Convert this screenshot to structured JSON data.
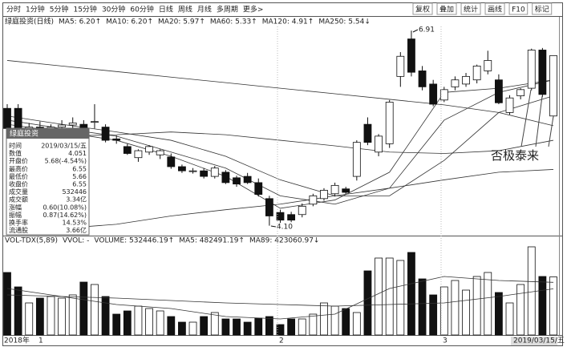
{
  "toolbar": {
    "left": [
      "分时",
      "1分钟",
      "5分钟",
      "15分钟",
      "30分钟",
      "60分钟",
      "日线",
      "周线",
      "月线",
      "多周期",
      "更多>"
    ],
    "right": [
      "复权",
      "叠加",
      "统计",
      "画线",
      "F10",
      "标记"
    ]
  },
  "chart_data": {
    "type": "candlestick",
    "title": "绿庭投资(日线)",
    "ylim": [
      3.98,
      6.97
    ],
    "candles": [
      {
        "open": 5.79,
        "high": 5.85,
        "low": 5.44,
        "close": 5.5
      },
      {
        "open": 5.79,
        "high": 5.85,
        "low": 5.48,
        "close": 5.5
      },
      {
        "open": 5.5,
        "high": 5.58,
        "low": 5.44,
        "close": 5.52
      },
      {
        "open": 5.52,
        "high": 5.6,
        "low": 5.46,
        "close": 5.48
      },
      {
        "open": 5.48,
        "high": 5.56,
        "low": 5.42,
        "close": 5.52
      },
      {
        "open": 5.52,
        "high": 5.62,
        "low": 5.46,
        "close": 5.55
      },
      {
        "open": 5.55,
        "high": 5.66,
        "low": 5.5,
        "close": 5.58
      },
      {
        "open": 5.56,
        "high": 5.62,
        "low": 5.44,
        "close": 5.48
      },
      {
        "open": 5.59,
        "high": 5.85,
        "low": 5.5,
        "close": 5.6
      },
      {
        "open": 5.52,
        "high": 5.56,
        "low": 5.3,
        "close": 5.33
      },
      {
        "open": 5.35,
        "high": 5.4,
        "low": 5.28,
        "close": 5.33
      },
      {
        "open": 5.24,
        "high": 5.28,
        "low": 5.12,
        "close": 5.14
      },
      {
        "open": 5.08,
        "high": 5.2,
        "low": 5.02,
        "close": 5.18
      },
      {
        "open": 5.16,
        "high": 5.26,
        "low": 5.12,
        "close": 5.24
      },
      {
        "open": 5.12,
        "high": 5.2,
        "low": 5.06,
        "close": 5.18
      },
      {
        "open": 5.09,
        "high": 5.14,
        "low": 4.92,
        "close": 4.95
      },
      {
        "open": 4.95,
        "high": 4.98,
        "low": 4.86,
        "close": 4.89
      },
      {
        "open": 4.89,
        "high": 4.93,
        "low": 4.85,
        "close": 4.89
      },
      {
        "open": 4.89,
        "high": 4.93,
        "low": 4.78,
        "close": 4.81
      },
      {
        "open": 4.81,
        "high": 4.96,
        "low": 4.78,
        "close": 4.93
      },
      {
        "open": 4.87,
        "high": 4.9,
        "low": 4.7,
        "close": 4.72
      },
      {
        "open": 4.79,
        "high": 4.82,
        "low": 4.66,
        "close": 4.7
      },
      {
        "open": 4.81,
        "high": 4.86,
        "low": 4.7,
        "close": 4.72
      },
      {
        "open": 4.72,
        "high": 4.78,
        "low": 4.52,
        "close": 4.55
      },
      {
        "open": 4.49,
        "high": 4.53,
        "low": 4.1,
        "close": 4.24
      },
      {
        "open": 4.29,
        "high": 4.33,
        "low": 4.14,
        "close": 4.18
      },
      {
        "open": 4.26,
        "high": 4.3,
        "low": 4.15,
        "close": 4.18
      },
      {
        "open": 4.26,
        "high": 4.42,
        "low": 4.22,
        "close": 4.38
      },
      {
        "open": 4.41,
        "high": 4.56,
        "low": 4.38,
        "close": 4.53
      },
      {
        "open": 4.49,
        "high": 4.64,
        "low": 4.46,
        "close": 4.61
      },
      {
        "open": 4.56,
        "high": 4.72,
        "low": 4.52,
        "close": 4.68
      },
      {
        "open": 4.63,
        "high": 4.66,
        "low": 4.55,
        "close": 4.58
      },
      {
        "open": 4.81,
        "high": 5.33,
        "low": 4.75,
        "close": 5.3
      },
      {
        "open": 5.56,
        "high": 5.66,
        "low": 5.26,
        "close": 5.3
      },
      {
        "open": 5.16,
        "high": 5.42,
        "low": 5.1,
        "close": 5.39
      },
      {
        "open": 5.28,
        "high": 5.91,
        "low": 5.22,
        "close": 5.88
      },
      {
        "open": 6.25,
        "high": 6.6,
        "low": 6.1,
        "close": 6.54
      },
      {
        "open": 6.79,
        "high": 6.91,
        "low": 6.25,
        "close": 6.31
      },
      {
        "open": 6.33,
        "high": 6.4,
        "low": 6.05,
        "close": 6.1
      },
      {
        "open": 6.14,
        "high": 6.2,
        "low": 5.82,
        "close": 5.85
      },
      {
        "open": 5.91,
        "high": 6.1,
        "low": 5.88,
        "close": 6.06
      },
      {
        "open": 6.1,
        "high": 6.25,
        "low": 6.05,
        "close": 6.2
      },
      {
        "open": 6.14,
        "high": 6.3,
        "low": 6.1,
        "close": 6.25
      },
      {
        "open": 6.2,
        "high": 6.42,
        "low": 6.15,
        "close": 6.4
      },
      {
        "open": 6.33,
        "high": 6.62,
        "low": 6.28,
        "close": 6.48
      },
      {
        "open": 6.2,
        "high": 6.28,
        "low": 5.85,
        "close": 5.87
      },
      {
        "open": 5.73,
        "high": 5.98,
        "low": 5.7,
        "close": 5.94
      },
      {
        "open": 5.97,
        "high": 6.08,
        "low": 5.92,
        "close": 6.06
      },
      {
        "open": 6.08,
        "high": 6.65,
        "low": 6.05,
        "close": 6.63
      },
      {
        "open": 6.63,
        "high": 6.66,
        "low": 5.95,
        "close": 5.99
      },
      {
        "open": 5.68,
        "high": 6.55,
        "low": 5.66,
        "close": 6.55
      }
    ],
    "ma_x": [
      0,
      5,
      10,
      15,
      20,
      25,
      30,
      35,
      40,
      45,
      50
    ],
    "ma_lines": [
      {
        "label": "MA5: 6.20↑",
        "values": [
          5.56,
          5.45,
          5.33,
          5.1,
          4.81,
          4.35,
          4.47,
          4.87,
          6.02,
          6.08,
          6.2
        ]
      },
      {
        "label": "MA10: 6.20↑",
        "values": [
          5.62,
          5.5,
          5.39,
          5.16,
          4.93,
          4.53,
          4.41,
          4.64,
          5.62,
          6.02,
          6.2
        ]
      },
      {
        "label": "MA20: 5.97↑",
        "values": [
          5.68,
          5.56,
          5.45,
          5.33,
          5.1,
          4.76,
          4.53,
          4.53,
          5.04,
          5.73,
          5.97
        ]
      },
      {
        "label": "MA60: 5.33↑",
        "values": [
          5.33,
          5.39,
          5.41,
          5.45,
          5.41,
          5.33,
          5.25,
          5.16,
          5.14,
          5.18,
          5.33
        ]
      },
      {
        "label": "MA120: 4.91↑",
        "values": [
          4.01,
          4.06,
          4.12,
          4.24,
          4.33,
          4.41,
          4.53,
          4.64,
          4.76,
          4.87,
          4.91
        ]
      },
      {
        "label": "MA250: 5.54↓",
        "values": [
          6.48,
          6.4,
          6.32,
          6.24,
          6.16,
          6.08,
          6,
          5.92,
          5.84,
          5.73,
          5.54
        ]
      }
    ],
    "annotations": [
      "6.91",
      "4.10",
      "否极泰来"
    ],
    "volume_header": [
      "VOL-TDX(5,89)",
      "VVOL: -",
      "VOLUME: 532446.19↑",
      "MA5: 482491.19↑",
      "MA89: 423060.97↓"
    ],
    "vol_ylim": [
      0,
      830000
    ],
    "volume": [
      572900,
      440700,
      293800,
      337900,
      352600,
      337900,
      367300,
      484800,
      462700,
      352600,
      191000,
      220400,
      264400,
      242400,
      220400,
      168900,
      117500,
      117500,
      168900,
      205700,
      146900,
      146900,
      117500,
      154200,
      168900,
      95500,
      146900,
      146900,
      191000,
      293800,
      264400,
      242400,
      205700,
      587600,
      705100,
      705100,
      683100,
      756500,
      514200,
      367300,
      440700,
      499500,
      411300,
      536200,
      572900,
      389300,
      293800,
      462700,
      808000,
      536200,
      532446
    ],
    "vol_ma": [
      {
        "values": [
          426000,
          352600,
          279100,
          242400,
          168900,
          146900,
          191000,
          426000,
          536200,
          499500,
          482491
        ]
      },
      {
        "values": [
          367300,
          352600,
          337900,
          315800,
          293800,
          279100,
          264400,
          279100,
          293800,
          352600,
          423060
        ]
      }
    ],
    "date_labels": [
      "2018年",
      "1",
      "2",
      "3",
      "2019/03/15/五"
    ]
  },
  "info_panel": {
    "title": "绿庭投资",
    "rows": [
      [
        "时间",
        "2019/03/15/五"
      ],
      [
        "数值",
        "4.051"
      ],
      [
        "开盘价",
        "5.68(-4.54%)"
      ],
      [
        "最高价",
        "6.55"
      ],
      [
        "最低价",
        "5.66"
      ],
      [
        "收盘价",
        "6.55"
      ],
      [
        "成交量",
        "532446"
      ],
      [
        "成交额",
        "3.34亿"
      ],
      [
        "涨幅",
        "0.60(10.08%)"
      ],
      [
        "振幅",
        "0.87(14.62%)"
      ],
      [
        "换手率",
        "14.53%"
      ],
      [
        "流通股",
        "3.66亿"
      ]
    ]
  }
}
